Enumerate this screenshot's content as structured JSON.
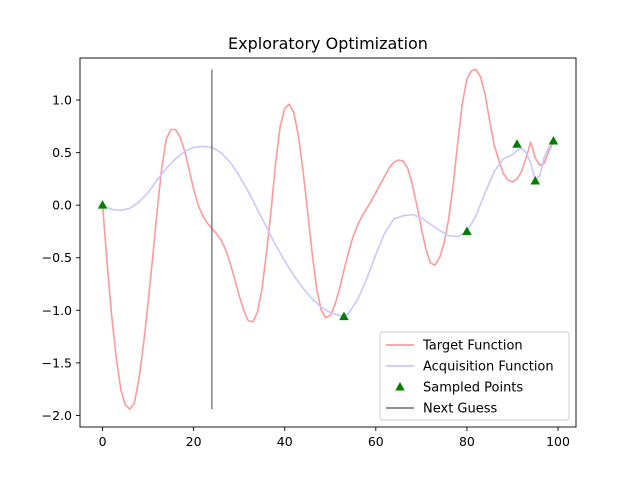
{
  "chart_data": {
    "type": "line",
    "title": "Exploratory Optimization",
    "xlabel": "",
    "ylabel": "",
    "xlim": [
      -4.95,
      103.95
    ],
    "ylim": [
      -2.11,
      1.4
    ],
    "xticks": [
      0,
      20,
      40,
      60,
      80,
      100
    ],
    "yticks": [
      -2.0,
      -1.5,
      -1.0,
      -0.5,
      0.0,
      0.5,
      1.0
    ],
    "grid": false,
    "legend_position": "lower-right",
    "series": [
      {
        "name": "Target Function",
        "kind": "line",
        "color": "#ff9999",
        "x": [
          0,
          1,
          2,
          3,
          4,
          5,
          6,
          7,
          8,
          9,
          10,
          11,
          12,
          13,
          14,
          15,
          16,
          17,
          18,
          19,
          20,
          21,
          22,
          23,
          24,
          25,
          26,
          27,
          28,
          29,
          30,
          31,
          32,
          33,
          34,
          35,
          36,
          37,
          38,
          39,
          40,
          41,
          42,
          43,
          44,
          45,
          46,
          47,
          48,
          49,
          50,
          51,
          52,
          53,
          54,
          55,
          56,
          57,
          58,
          59,
          60,
          61,
          62,
          63,
          64,
          65,
          66,
          67,
          68,
          69,
          70,
          71,
          72,
          73,
          74,
          75,
          76,
          77,
          78,
          79,
          80,
          81,
          82,
          83,
          84,
          85,
          86,
          87,
          88,
          89,
          90,
          91,
          92,
          93,
          94,
          95,
          96,
          97,
          98,
          99
        ],
        "y": [
          0.0,
          -0.55,
          -1.05,
          -1.45,
          -1.75,
          -1.9,
          -1.94,
          -1.88,
          -1.65,
          -1.32,
          -0.93,
          -0.5,
          -0.05,
          0.36,
          0.63,
          0.72,
          0.72,
          0.65,
          0.52,
          0.34,
          0.15,
          0.0,
          -0.1,
          -0.17,
          -0.22,
          -0.27,
          -0.33,
          -0.42,
          -0.55,
          -0.7,
          -0.86,
          -1.0,
          -1.1,
          -1.11,
          -1.02,
          -0.8,
          -0.45,
          -0.05,
          0.4,
          0.75,
          0.92,
          0.96,
          0.88,
          0.66,
          0.33,
          -0.05,
          -0.45,
          -0.79,
          -1.0,
          -1.07,
          -1.05,
          -0.95,
          -0.8,
          -0.62,
          -0.45,
          -0.3,
          -0.19,
          -0.1,
          -0.03,
          0.04,
          0.12,
          0.2,
          0.28,
          0.36,
          0.41,
          0.43,
          0.42,
          0.35,
          0.2,
          0.0,
          -0.22,
          -0.42,
          -0.55,
          -0.57,
          -0.5,
          -0.36,
          -0.13,
          0.2,
          0.6,
          0.97,
          1.2,
          1.28,
          1.29,
          1.22,
          1.05,
          0.8,
          0.57,
          0.43,
          0.3,
          0.24,
          0.22,
          0.25,
          0.32,
          0.45,
          0.6,
          0.45,
          0.38,
          0.4,
          0.52,
          0.6
        ],
        "note": ""
      },
      {
        "name": "Acquisition Function",
        "kind": "line",
        "color": "#c8c8ff",
        "x": [
          0,
          2,
          4,
          6,
          8,
          10,
          12,
          14,
          16,
          18,
          20,
          22,
          24,
          26,
          28,
          30,
          32,
          34,
          36,
          38,
          40,
          42,
          44,
          46,
          48,
          50,
          52,
          53,
          54,
          56,
          58,
          60,
          62,
          64,
          66,
          68,
          70,
          72,
          74,
          76,
          78,
          80,
          82,
          84,
          86,
          88,
          90,
          91,
          92,
          93,
          94,
          95,
          96,
          97,
          98,
          99
        ],
        "y": [
          0.0,
          -0.04,
          -0.05,
          -0.03,
          0.03,
          0.12,
          0.24,
          0.35,
          0.44,
          0.51,
          0.55,
          0.56,
          0.55,
          0.5,
          0.41,
          0.28,
          0.13,
          -0.04,
          -0.21,
          -0.38,
          -0.53,
          -0.67,
          -0.79,
          -0.89,
          -0.97,
          -1.02,
          -1.05,
          -1.06,
          -1.03,
          -0.9,
          -0.7,
          -0.47,
          -0.26,
          -0.13,
          -0.1,
          -0.09,
          -0.12,
          -0.18,
          -0.24,
          -0.29,
          -0.3,
          -0.25,
          -0.1,
          0.12,
          0.32,
          0.44,
          0.48,
          0.52,
          0.54,
          0.5,
          0.4,
          0.24,
          0.28,
          0.46,
          0.55,
          0.6
        ]
      },
      {
        "name": "Sampled Points",
        "kind": "scatter",
        "color": "#007f00",
        "marker": "triangle",
        "x": [
          0,
          53,
          80,
          91,
          95,
          99
        ],
        "y": [
          0.0,
          -1.06,
          -0.25,
          0.58,
          0.23,
          0.61
        ]
      },
      {
        "name": "Next Guess",
        "kind": "vline",
        "color": "#808080",
        "x": 24,
        "ymin": -1.94,
        "ymax": 1.29
      }
    ]
  }
}
